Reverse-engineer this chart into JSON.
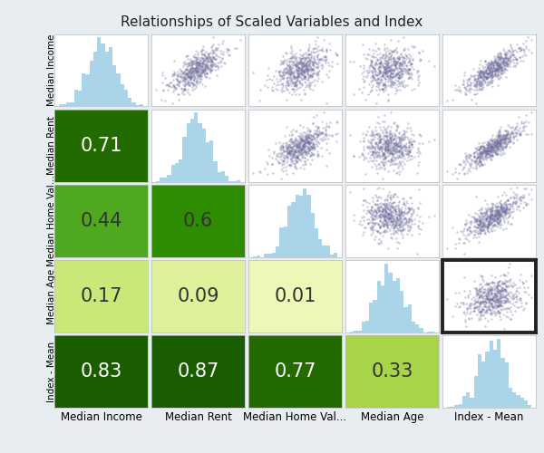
{
  "title": "Relationships of Scaled Variables and Index",
  "variables": [
    "Median Income",
    "Median Rent",
    "Median Home Val...",
    "Median Age",
    "Index - Mean"
  ],
  "correlations": [
    [
      null,
      null,
      null,
      null,
      null
    ],
    [
      0.71,
      null,
      null,
      null,
      null
    ],
    [
      0.44,
      0.6,
      null,
      null,
      null
    ],
    [
      0.17,
      0.09,
      0.01,
      null,
      null
    ],
    [
      0.83,
      0.87,
      0.77,
      0.33,
      null
    ]
  ],
  "highlighted_scatter_row": 3,
  "highlighted_scatter_col": 4,
  "hist_color": "#aad4e8",
  "scatter_color": "#6b6b9a",
  "scatter_alpha": 0.35,
  "scatter_size": 3,
  "background_color": "#ffffff",
  "outer_bg": "#f0f4f8",
  "title_fontsize": 11,
  "corr_fontsize": 15,
  "ylabel_fontsize": 7.5,
  "xlabel_fontsize": 8.5,
  "n_points": 600,
  "hist_bins": 22,
  "green_colors": {
    "dark1": "#1a5c00",
    "dark2": "#236b00",
    "mid1": "#2e8c00",
    "mid2": "#4ea820",
    "light1": "#a8d44a",
    "light2": "#c8e87a",
    "light3": "#ddf09a",
    "light4": "#edf8b8"
  }
}
